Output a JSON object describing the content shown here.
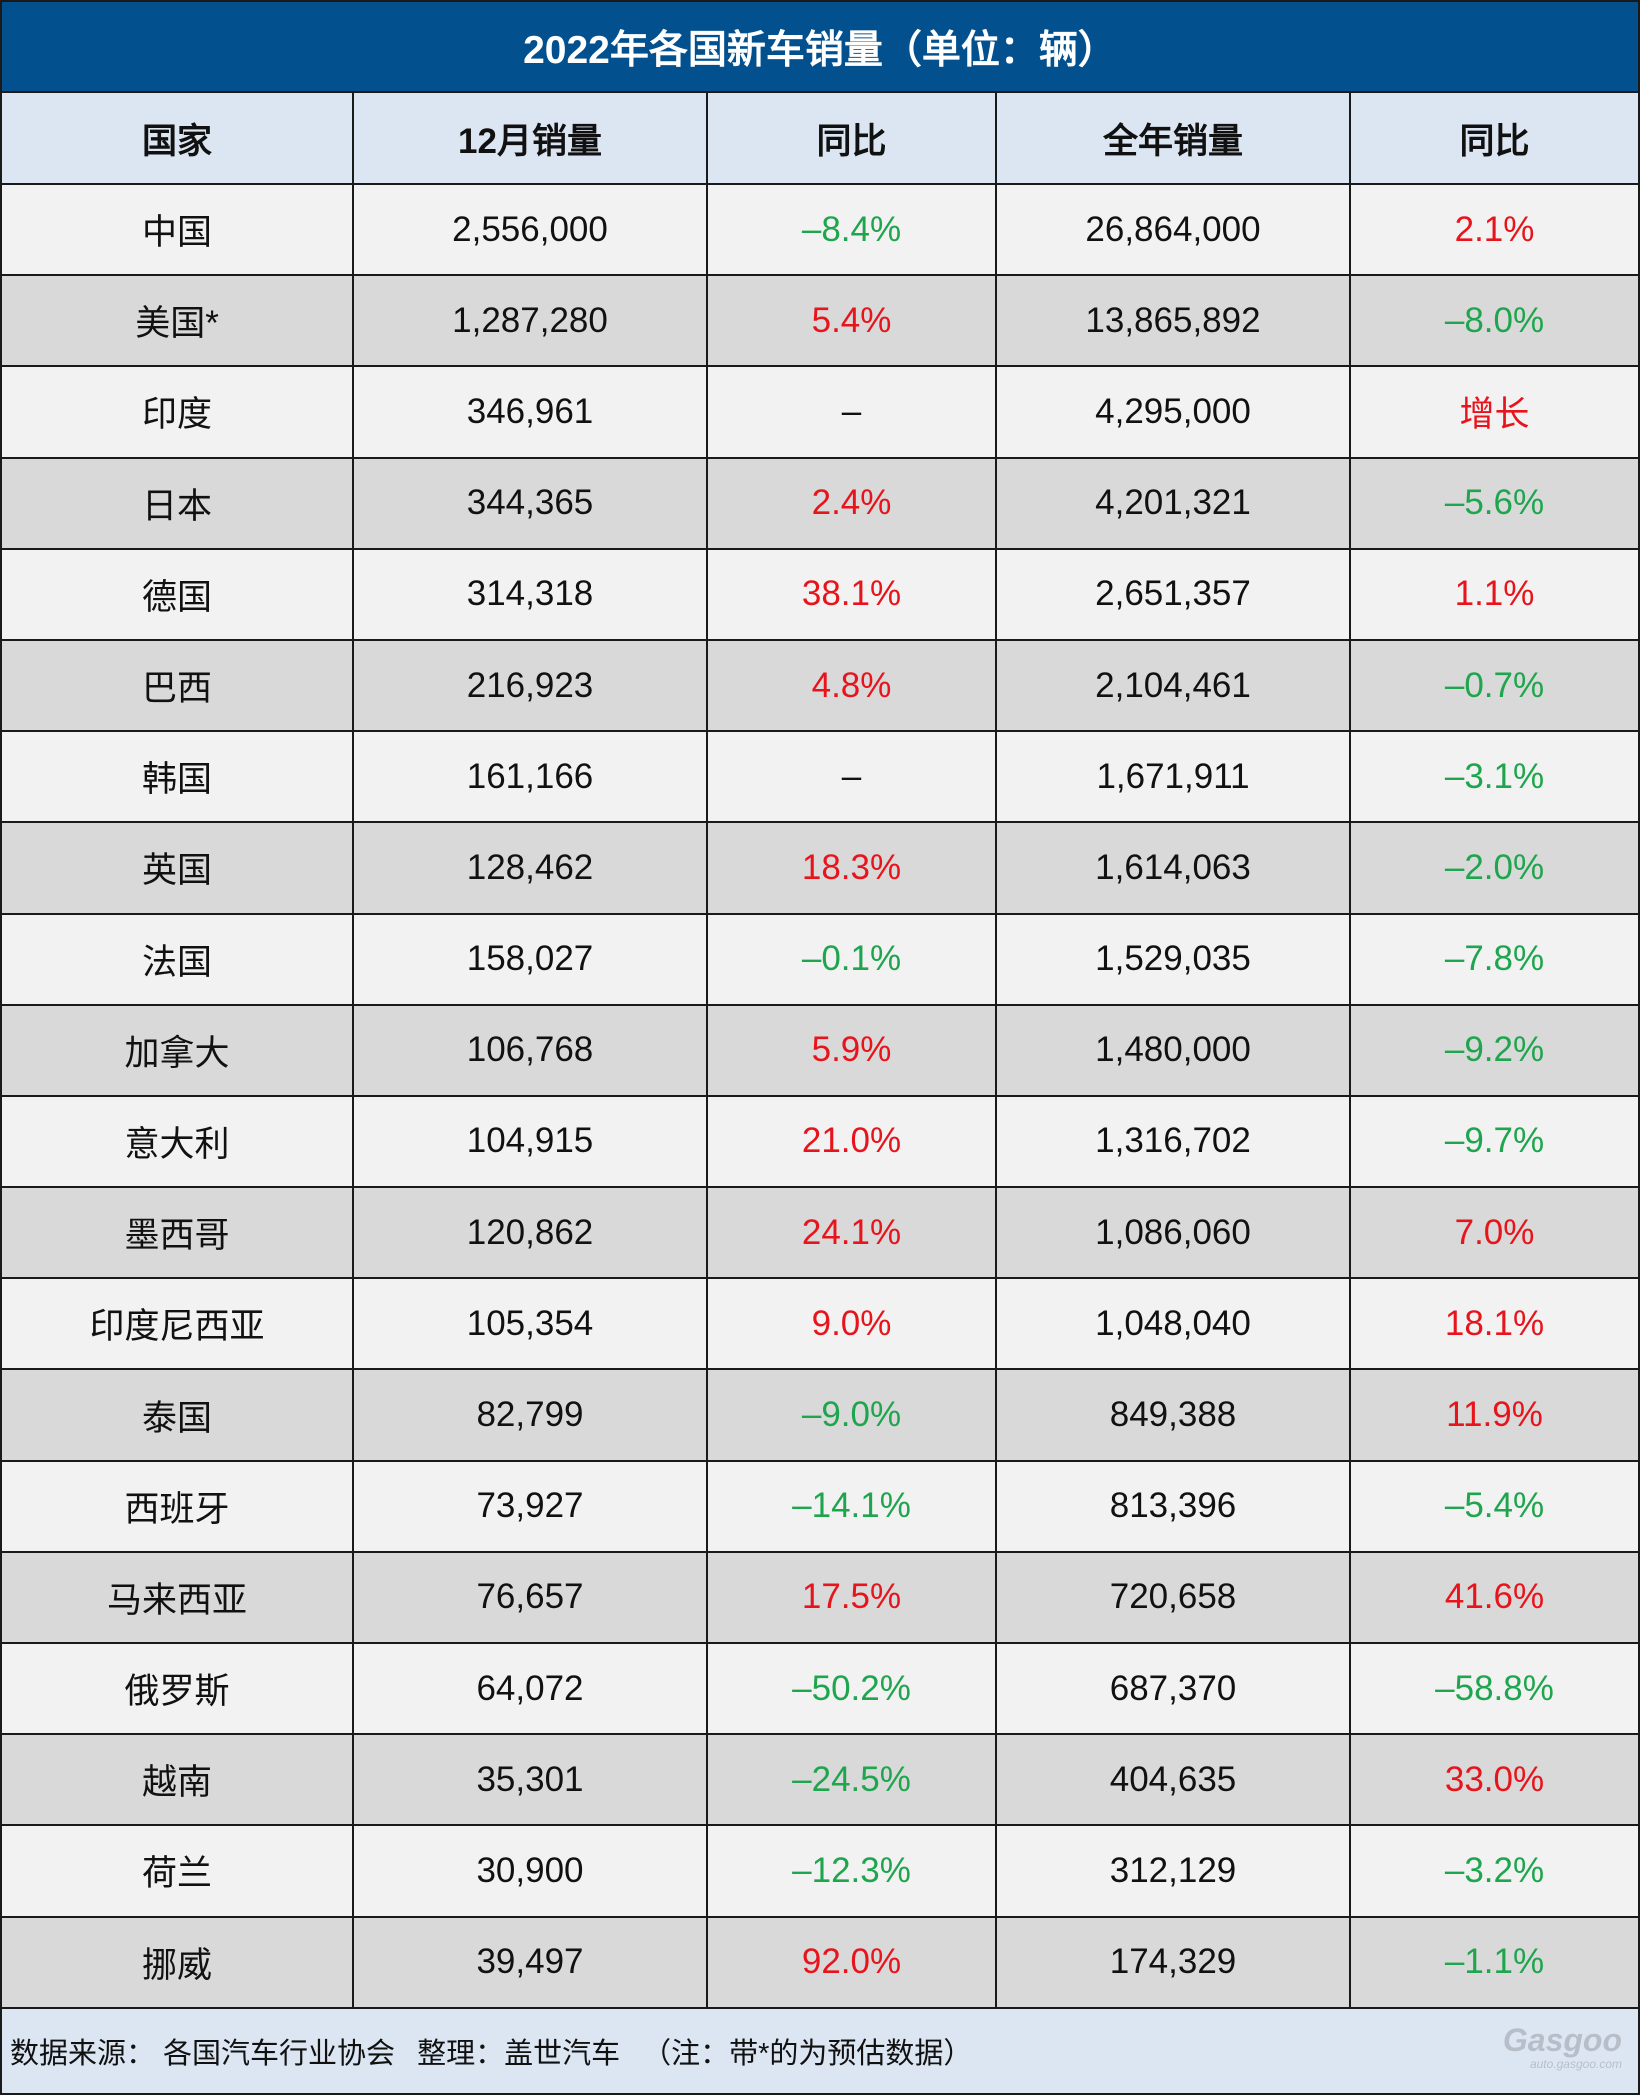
{
  "title": "2022年各国新车销量（单位：辆）",
  "table": {
    "header": [
      "国家",
      "12月销量",
      "同比",
      "全年销量",
      "同比"
    ],
    "rows": [
      [
        "中国",
        "2,556,000",
        "–8.4%",
        "26,864,000",
        "2.1%"
      ],
      [
        "美国*",
        "1,287,280",
        "5.4%",
        "13,865,892",
        "–8.0%"
      ],
      [
        "印度",
        "346,961",
        "–",
        "4,295,000",
        "增长"
      ],
      [
        "日本",
        "344,365",
        "2.4%",
        "4,201,321",
        "–5.6%"
      ],
      [
        "德国",
        "314,318",
        "38.1%",
        "2,651,357",
        "1.1%"
      ],
      [
        "巴西",
        "216,923",
        "4.8%",
        "2,104,461",
        "–0.7%"
      ],
      [
        "韩国",
        "161,166",
        "–",
        "1,671,911",
        "–3.1%"
      ],
      [
        "英国",
        "128,462",
        "18.3%",
        "1,614,063",
        "–2.0%"
      ],
      [
        "法国",
        "158,027",
        "–0.1%",
        "1,529,035",
        "–7.8%"
      ],
      [
        "加拿大",
        "106,768",
        "5.9%",
        "1,480,000",
        "–9.2%"
      ],
      [
        "意大利",
        "104,915",
        "21.0%",
        "1,316,702",
        "–9.7%"
      ],
      [
        "墨西哥",
        "120,862",
        "24.1%",
        "1,086,060",
        "7.0%"
      ],
      [
        "印度尼西亚",
        "105,354",
        "9.0%",
        "1,048,040",
        "18.1%"
      ],
      [
        "泰国",
        "82,799",
        "–9.0%",
        "849,388",
        "11.9%"
      ],
      [
        "西班牙",
        "73,927",
        "–14.1%",
        "813,396",
        "–5.4%"
      ],
      [
        "马来西亚",
        "76,657",
        "17.5%",
        "720,658",
        "41.6%"
      ],
      [
        "俄罗斯",
        "64,072",
        "–50.2%",
        "687,370",
        "–58.8%"
      ],
      [
        "越南",
        "35,301",
        "–24.5%",
        "404,635",
        "33.0%"
      ],
      [
        "荷兰",
        "30,900",
        "–12.3%",
        "312,129",
        "–3.2%"
      ],
      [
        "挪威",
        "39,497",
        "92.0%",
        "174,329",
        "–1.1%"
      ]
    ]
  },
  "footer": {
    "source": "数据来源：  各国汽车行业协会",
    "editor": "整理：盖世汽车",
    "note": "（注：带*的为预估数据）"
  },
  "watermark": {
    "brand": "Gasgoo",
    "url": "auto.gasgoo.com"
  }
}
